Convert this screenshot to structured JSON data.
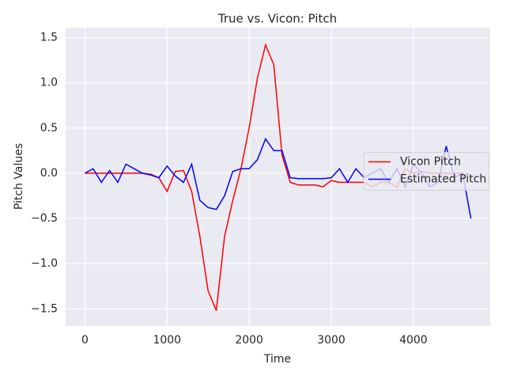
{
  "chart_data": {
    "type": "line",
    "title": "True vs. Vicon: Pitch",
    "x_label": "Time",
    "y_label": "Pitch Values",
    "x": [
      0,
      100,
      200,
      300,
      400,
      500,
      600,
      700,
      800,
      900,
      1000,
      1100,
      1200,
      1300,
      1400,
      1500,
      1600,
      1700,
      1800,
      1900,
      2000,
      2100,
      2200,
      2300,
      2400,
      2500,
      2600,
      2700,
      2800,
      2900,
      3000,
      3100,
      3200,
      3300,
      3400,
      3500,
      3600,
      3700,
      3800,
      3900,
      4000,
      4100,
      4200,
      4300,
      4400,
      4500,
      4600,
      4700
    ],
    "series": [
      {
        "name": "Vicon Pitch",
        "color": "#ff0000",
        "values": [
          0,
          0,
          0,
          0,
          0,
          0,
          0,
          0,
          -0.01,
          -0.05,
          -0.2,
          0.02,
          0.03,
          -0.2,
          -0.7,
          -1.3,
          -1.52,
          -0.7,
          -0.3,
          0.05,
          0.5,
          1.05,
          1.42,
          1.2,
          0.2,
          -0.1,
          -0.13,
          -0.13,
          -0.13,
          -0.15,
          -0.08,
          -0.1,
          -0.1,
          -0.1,
          -0.1,
          -0.15,
          -0.1,
          -0.1,
          -0.15,
          0.05,
          0,
          0.02,
          0,
          0,
          0,
          0,
          0,
          null
        ]
      },
      {
        "name": "Estimated Pitch",
        "color": "#0000ff",
        "values": [
          0,
          0.05,
          -0.1,
          0.03,
          -0.1,
          0.1,
          0.05,
          0,
          -0.02,
          -0.05,
          0.08,
          -0.03,
          -0.1,
          0.1,
          -0.3,
          -0.38,
          -0.4,
          -0.25,
          0.02,
          0.05,
          0.05,
          0.15,
          0.38,
          0.25,
          0.25,
          -0.05,
          -0.06,
          -0.06,
          -0.06,
          -0.06,
          -0.05,
          0.05,
          -0.1,
          0.05,
          -0.05,
          0,
          0.05,
          -0.1,
          0.05,
          -0.15,
          0.1,
          0,
          -0.15,
          -0.1,
          0.3,
          -0.05,
          0,
          -0.5
        ]
      }
    ],
    "xlim": [
      -235,
      4935
    ],
    "ylim": [
      -1.69,
      1.61
    ],
    "xticks": [
      0,
      1000,
      2000,
      3000,
      4000
    ],
    "yticks": [
      {
        "value": -1.5,
        "label": "−1.5"
      },
      {
        "value": -1,
        "label": "−1.0"
      },
      {
        "value": -0.5,
        "label": "−0.5"
      },
      {
        "value": 0,
        "label": "0.0"
      },
      0.5,
      {
        "value": 1,
        "label": "1.0"
      },
      1.5
    ],
    "grid": true,
    "legend": "center right"
  }
}
